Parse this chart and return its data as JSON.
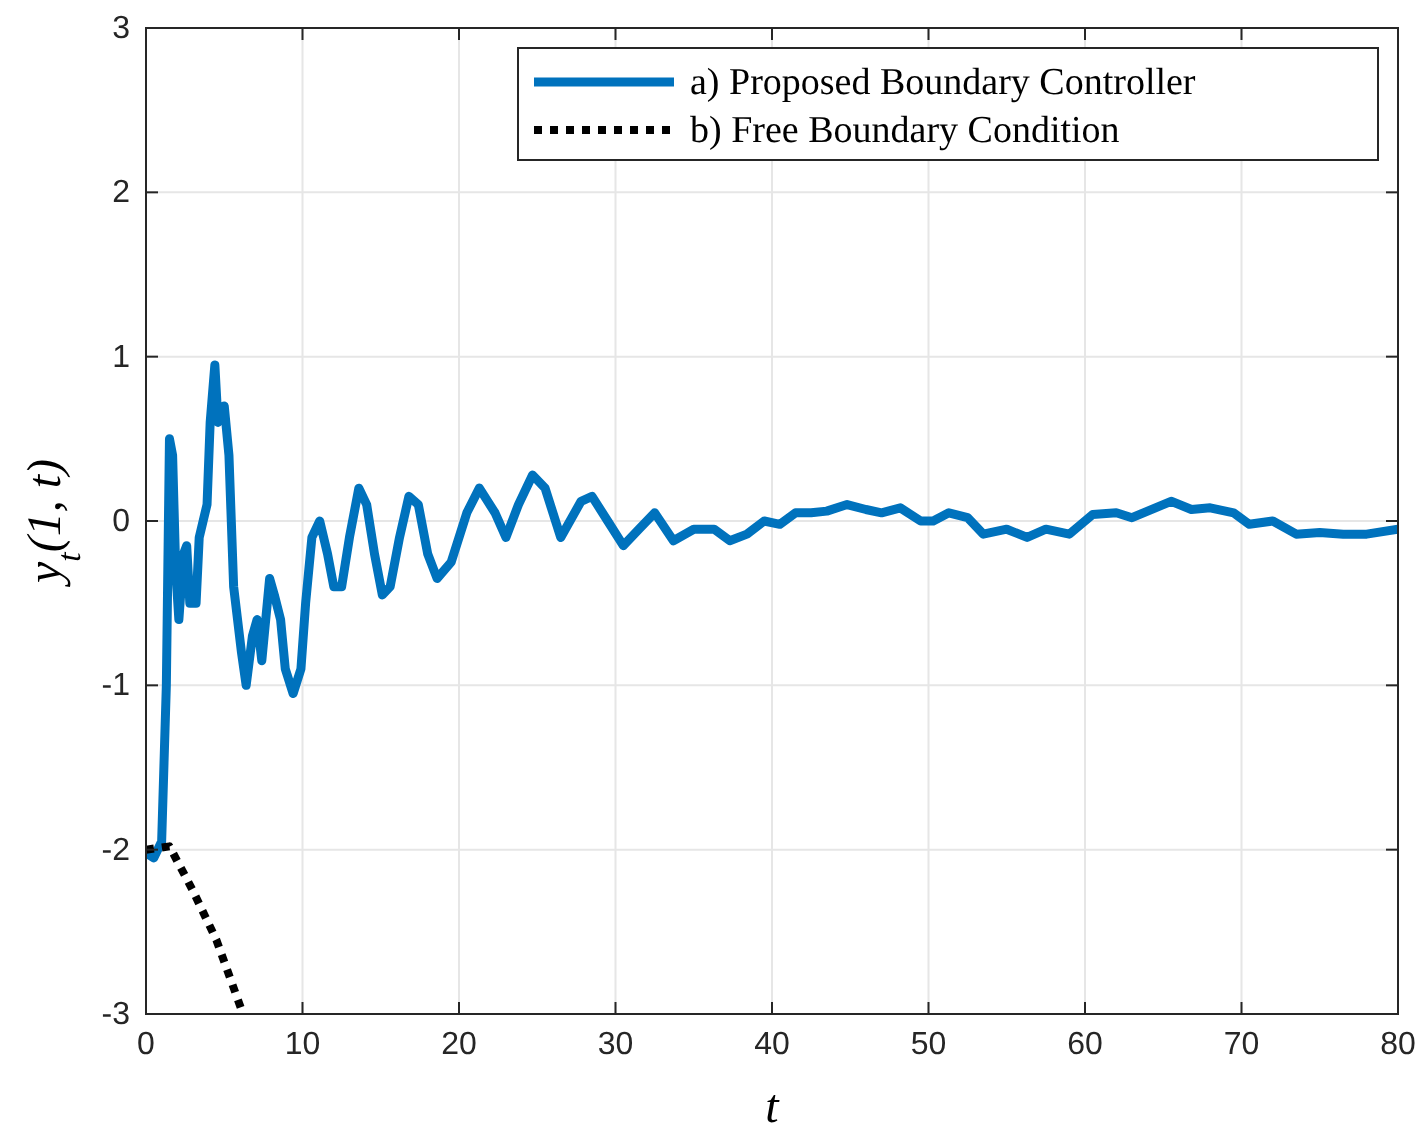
{
  "chart_data": {
    "type": "line",
    "xlabel": "t",
    "ylabel": "y$_{t}$(1, t)",
    "xlim": [
      0,
      80
    ],
    "ylim": [
      -3,
      3
    ],
    "xticks": [
      0,
      10,
      20,
      30,
      40,
      50,
      60,
      70,
      80
    ],
    "yticks": [
      -3,
      -2,
      -1,
      0,
      1,
      2,
      3
    ],
    "grid": true,
    "legend": "top right",
    "series": [
      {
        "name": "a) Proposed Boundary Controller",
        "color": "#0072bd",
        "line_style": "solid",
        "x": [
          0,
          0.5,
          1,
          1.3,
          1.5,
          1.7,
          1.9,
          2.1,
          2.4,
          2.6,
          2.8,
          3.2,
          3.4,
          3.9,
          4.1,
          4.4,
          4.6,
          5.0,
          5.3,
          5.6,
          6.1,
          6.4,
          6.8,
          7.1,
          7.4,
          7.9,
          8.2,
          8.6,
          8.9,
          9.4,
          9.9,
          10.2,
          10.6,
          11.1,
          11.6,
          12.0,
          12.5,
          13.0,
          13.6,
          14.1,
          14.6,
          15.1,
          15.6,
          16.2,
          16.8,
          17.4,
          18.0,
          18.6,
          19.5,
          20.5,
          21.3,
          22.3,
          23.0,
          23.8,
          24.7,
          25.5,
          26.5,
          27.8,
          28.5,
          29.5,
          30.5,
          31.5,
          32.5,
          33.7,
          35,
          36.3,
          37.3,
          38.4,
          39.5,
          40.5,
          41.5,
          42.5,
          43.5,
          44.8,
          46,
          47,
          48.2,
          49.5,
          50.3,
          51.3,
          52.5,
          53.5,
          55,
          56.3,
          57.5,
          59,
          60.5,
          62,
          63,
          64.5,
          65.5,
          66.8,
          68,
          69.5,
          70.5,
          72,
          73.5,
          75,
          76.5,
          78,
          80
        ],
        "values": [
          -2.02,
          -2.05,
          -1.95,
          -1.0,
          0.5,
          0.4,
          -0.3,
          -0.6,
          -0.2,
          -0.15,
          -0.5,
          -0.5,
          -0.1,
          0.1,
          0.6,
          0.95,
          0.6,
          0.7,
          0.4,
          -0.4,
          -0.8,
          -1.0,
          -0.7,
          -0.6,
          -0.85,
          -0.35,
          -0.45,
          -0.6,
          -0.9,
          -1.05,
          -0.9,
          -0.5,
          -0.1,
          0.0,
          -0.2,
          -0.4,
          -0.4,
          -0.1,
          0.2,
          0.1,
          -0.2,
          -0.45,
          -0.4,
          -0.1,
          0.15,
          0.1,
          -0.2,
          -0.35,
          -0.25,
          0.05,
          0.2,
          0.05,
          -0.1,
          0.1,
          0.28,
          0.2,
          -0.1,
          0.12,
          0.15,
          0.0,
          -0.15,
          -0.05,
          0.05,
          -0.12,
          -0.05,
          -0.05,
          -0.12,
          -0.08,
          0.0,
          -0.02,
          0.05,
          0.05,
          0.06,
          0.1,
          0.07,
          0.05,
          0.08,
          0.0,
          0.0,
          0.05,
          0.02,
          -0.08,
          -0.05,
          -0.1,
          -0.05,
          -0.08,
          0.04,
          0.05,
          0.02,
          0.08,
          0.12,
          0.07,
          0.08,
          0.05,
          -0.02,
          0.0,
          -0.08,
          -0.07,
          -0.08,
          -0.08,
          -0.05
        ]
      },
      {
        "name": "b) Free Boundary Condition",
        "color": "#000000",
        "line_style": "dotted",
        "x": [
          0,
          1.5,
          3,
          4.5,
          6.2
        ],
        "values": [
          -2.0,
          -1.98,
          -2.25,
          -2.55,
          -3.0
        ]
      }
    ]
  }
}
